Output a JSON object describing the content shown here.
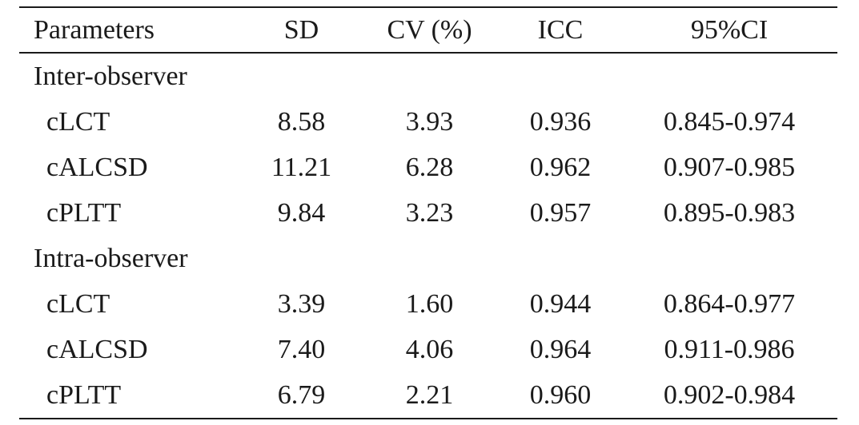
{
  "table": {
    "headers": {
      "parameters": "Parameters",
      "sd": "SD",
      "cv": "CV (%)",
      "icc": "ICC",
      "ci": "95%CI"
    },
    "groups": [
      {
        "label": "Inter-observer",
        "rows": [
          {
            "parameter": "cLCT",
            "sd": "8.58",
            "cv": "3.93",
            "icc": "0.936",
            "ci": "0.845-0.974"
          },
          {
            "parameter": "cALCSD",
            "sd": "11.21",
            "cv": "6.28",
            "icc": "0.962",
            "ci": "0.907-0.985"
          },
          {
            "parameter": "cPLTT",
            "sd": "9.84",
            "cv": "3.23",
            "icc": "0.957",
            "ci": "0.895-0.983"
          }
        ]
      },
      {
        "label": "Intra-observer",
        "rows": [
          {
            "parameter": "cLCT",
            "sd": "3.39",
            "cv": "1.60",
            "icc": "0.944",
            "ci": "0.864-0.977"
          },
          {
            "parameter": "cALCSD",
            "sd": "7.40",
            "cv": "4.06",
            "icc": "0.964",
            "ci": "0.911-0.986"
          },
          {
            "parameter": "cPLTT",
            "sd": "6.79",
            "cv": "2.21",
            "icc": "0.960",
            "ci": "0.902-0.984"
          }
        ]
      }
    ]
  }
}
